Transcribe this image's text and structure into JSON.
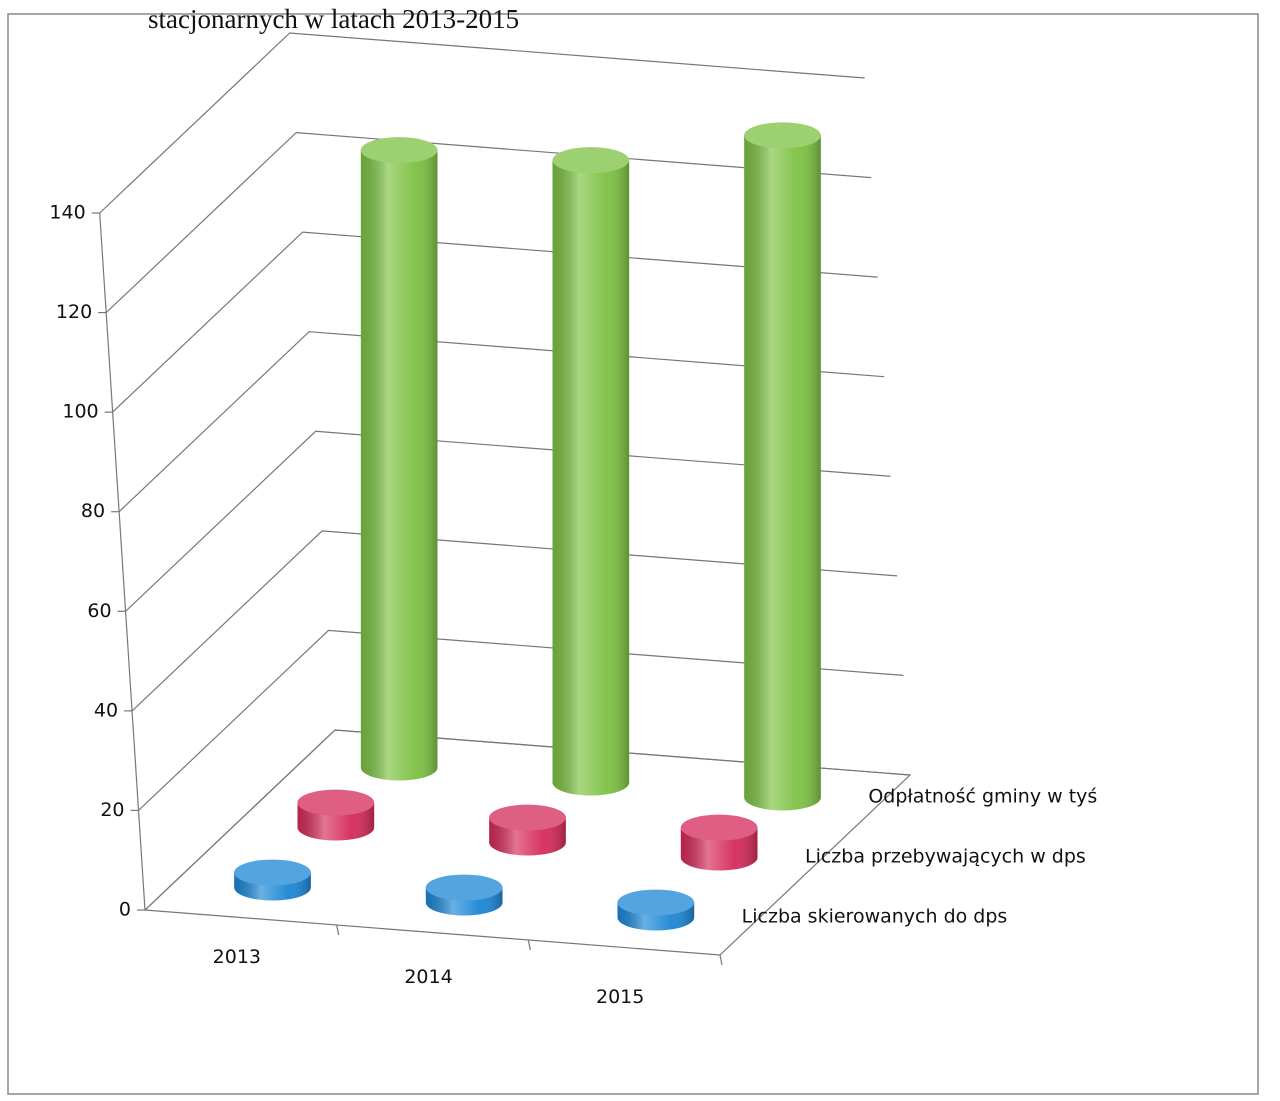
{
  "chart_data": {
    "type": "bar3d",
    "title": "stacjonarnych w latach 2013-2015",
    "categories": [
      "2013",
      "2014",
      "2015"
    ],
    "series": [
      {
        "name": "Odpłatność gminy w tyś",
        "color": "#7cc142",
        "values": [
          124,
          125,
          133
        ]
      },
      {
        "name": "Liczba przebywających w dps",
        "color": "#d42a5b",
        "values": [
          5,
          5,
          6
        ]
      },
      {
        "name": "Liczba skierowanych do dps",
        "color": "#1a86d4",
        "values": [
          3,
          3,
          3
        ]
      }
    ],
    "ylim": [
      0,
      140
    ],
    "yticks": [
      0,
      20,
      40,
      60,
      80,
      100,
      120,
      140
    ],
    "grid": true
  }
}
